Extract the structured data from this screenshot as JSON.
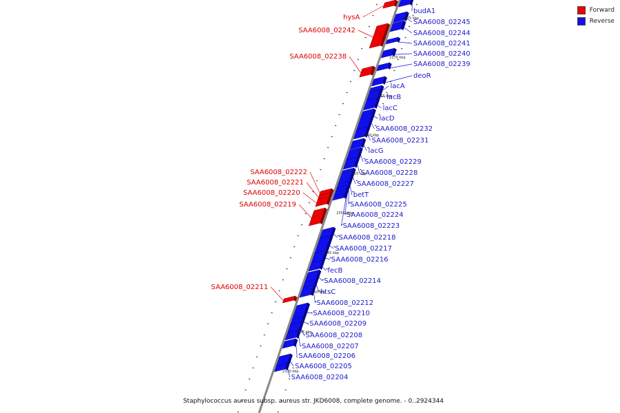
{
  "legend": {
    "forward": {
      "label": "Forward",
      "color": "#ee0000"
    },
    "reverse": {
      "label": "Reverse",
      "color": "#1010ee"
    }
  },
  "caption": "Staphylococcus aureus subsp. aureus str. JKD6008, complete genome. - 0..2924344",
  "forward_genes": [
    "hysA",
    "SAA6008_02242",
    "SAA6008_02238",
    "SAA6008_02222",
    "SAA6008_02221",
    "SAA6008_02220",
    "SAA6008_02219",
    "SAA6008_02211"
  ],
  "reverse_genes": [
    "budA1",
    "SAA6008_02245",
    "SAA6008_02244",
    "SAA6008_02241",
    "SAA6008_02240",
    "SAA6008_02239",
    "deoR",
    "lacA",
    "lacB",
    "lacC",
    "lacD",
    "SAA6008_02232",
    "SAA6008_02231",
    "lacG",
    "SAA6008_02229",
    "SAA6008_02228",
    "SAA6008_02227",
    "betT",
    "SAA6008_02225",
    "SAA6008_02224",
    "SAA6008_02223",
    "SAA6008_02218",
    "SAA6008_02217",
    "SAA6008_02216",
    "fecB",
    "SAA6008_02214",
    "htsC",
    "SAA6008_02212",
    "SAA6008_02210",
    "SAA6008_02209",
    "SAA6008_02208",
    "SAA6008_02207",
    "SAA6008_02206",
    "SAA6008_02205",
    "SAA6008_02204"
  ],
  "kbp_labels": [
    "2375 kbp",
    "2370 kbp",
    "2365 kbp",
    "2360 kbp",
    "2355 kbp",
    "2350 kbp",
    "2345 kbp",
    "2340 kbp",
    "2335 kbp",
    "2330 kbp"
  ]
}
